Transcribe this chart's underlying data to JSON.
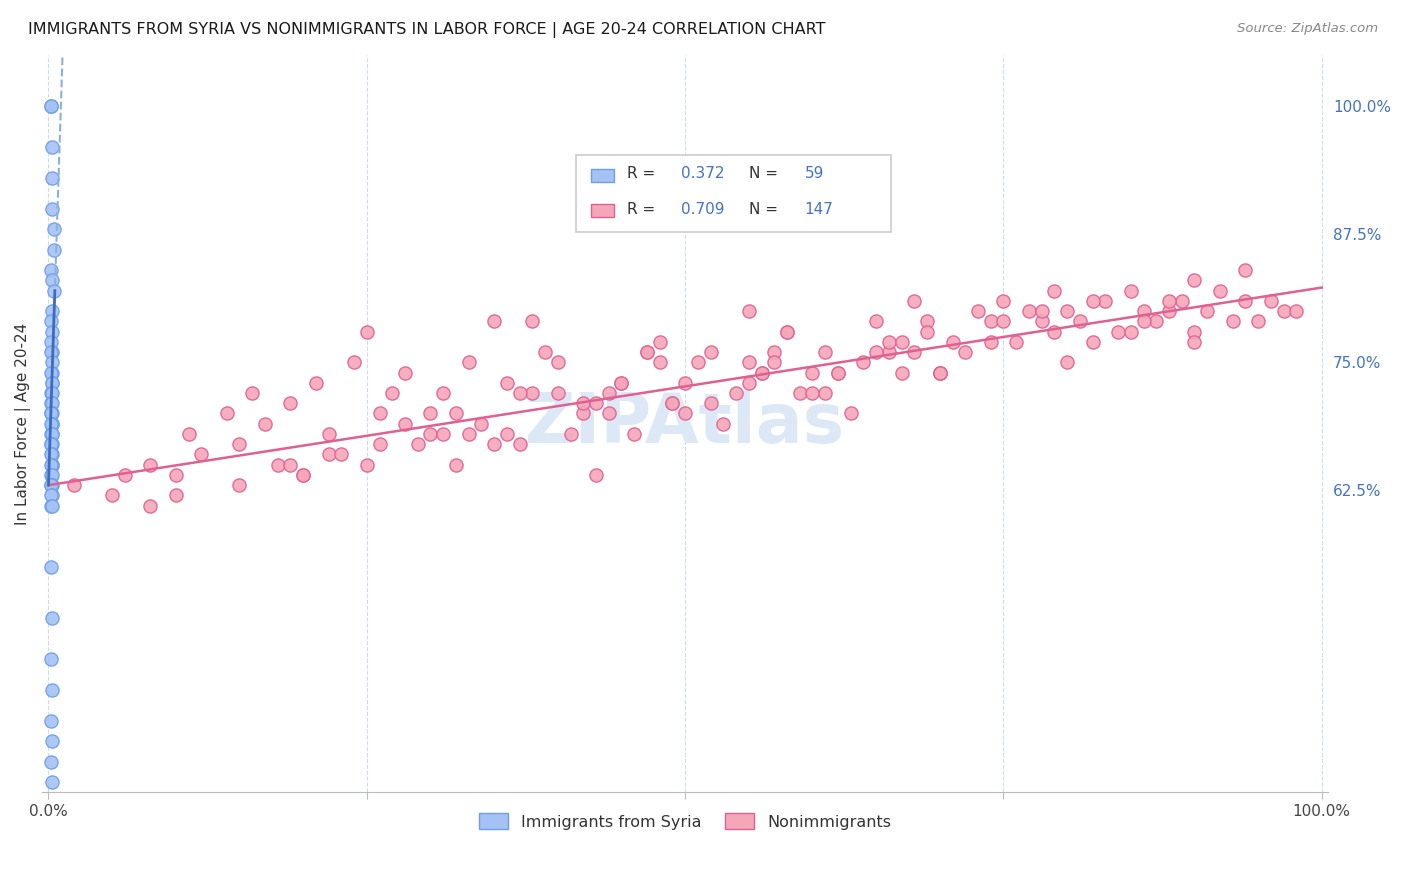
{
  "title": "IMMIGRANTS FROM SYRIA VS NONIMMIGRANTS IN LABOR FORCE | AGE 20-24 CORRELATION CHART",
  "source": "Source: ZipAtlas.com",
  "ylabel": "In Labor Force | Age 20-24",
  "right_yticks": [
    "62.5%",
    "75.0%",
    "87.5%",
    "100.0%"
  ],
  "right_ytick_vals": [
    0.625,
    0.75,
    0.875,
    1.0
  ],
  "blue_color": "#a4c2f4",
  "pink_color": "#f4a7b9",
  "blue_edge_color": "#6d9eeb",
  "pink_edge_color": "#e06090",
  "blue_line_color": "#3d6bbf",
  "pink_line_color": "#e06090",
  "blue_dash_color": "#8ab0e0",
  "watermark_color": "#dce8f5",
  "background": "#ffffff",
  "grid_color": "#c8d8e8",
  "xmin": 0.0,
  "xmax": 1.0,
  "ymin": 0.33,
  "ymax": 1.05,
  "pink_slope": 0.193,
  "pink_intercept": 0.63,
  "blue_slope": 38.0,
  "blue_intercept": 0.63,
  "syria_x": [
    0.002,
    0.002,
    0.003,
    0.003,
    0.003,
    0.004,
    0.004,
    0.002,
    0.003,
    0.004,
    0.003,
    0.002,
    0.003,
    0.002,
    0.003,
    0.002,
    0.003,
    0.003,
    0.002,
    0.003,
    0.003,
    0.002,
    0.003,
    0.002,
    0.003,
    0.002,
    0.003,
    0.002,
    0.003,
    0.003,
    0.002,
    0.003,
    0.002,
    0.003,
    0.002,
    0.003,
    0.002,
    0.003,
    0.002,
    0.003,
    0.003,
    0.002,
    0.002,
    0.003,
    0.002,
    0.003,
    0.002,
    0.003,
    0.002,
    0.002,
    0.003,
    0.002,
    0.003,
    0.002,
    0.003,
    0.002,
    0.003,
    0.002,
    0.003
  ],
  "syria_y": [
    1.0,
    1.0,
    0.96,
    0.93,
    0.9,
    0.88,
    0.86,
    0.84,
    0.83,
    0.82,
    0.8,
    0.79,
    0.78,
    0.77,
    0.76,
    0.76,
    0.75,
    0.74,
    0.74,
    0.73,
    0.73,
    0.72,
    0.72,
    0.71,
    0.71,
    0.7,
    0.7,
    0.7,
    0.69,
    0.69,
    0.69,
    0.68,
    0.68,
    0.68,
    0.67,
    0.67,
    0.67,
    0.66,
    0.66,
    0.65,
    0.65,
    0.65,
    0.64,
    0.64,
    0.63,
    0.63,
    0.63,
    0.62,
    0.62,
    0.61,
    0.61,
    0.55,
    0.5,
    0.46,
    0.43,
    0.4,
    0.38,
    0.36,
    0.34
  ],
  "nonimm_x": [
    0.02,
    0.05,
    0.06,
    0.08,
    0.1,
    0.11,
    0.12,
    0.14,
    0.15,
    0.16,
    0.17,
    0.18,
    0.19,
    0.2,
    0.21,
    0.22,
    0.24,
    0.25,
    0.26,
    0.27,
    0.28,
    0.29,
    0.3,
    0.31,
    0.32,
    0.33,
    0.34,
    0.35,
    0.36,
    0.37,
    0.38,
    0.39,
    0.4,
    0.41,
    0.42,
    0.43,
    0.44,
    0.45,
    0.46,
    0.47,
    0.48,
    0.49,
    0.5,
    0.51,
    0.52,
    0.53,
    0.54,
    0.55,
    0.56,
    0.57,
    0.58,
    0.59,
    0.6,
    0.61,
    0.62,
    0.63,
    0.64,
    0.65,
    0.66,
    0.67,
    0.68,
    0.69,
    0.7,
    0.71,
    0.72,
    0.73,
    0.74,
    0.75,
    0.76,
    0.77,
    0.78,
    0.79,
    0.8,
    0.81,
    0.82,
    0.83,
    0.84,
    0.85,
    0.86,
    0.87,
    0.88,
    0.89,
    0.9,
    0.91,
    0.92,
    0.93,
    0.94,
    0.95,
    0.96,
    0.97,
    0.98,
    0.25,
    0.3,
    0.35,
    0.38,
    0.42,
    0.47,
    0.52,
    0.57,
    0.61,
    0.66,
    0.7,
    0.75,
    0.8,
    0.85,
    0.9,
    0.2,
    0.28,
    0.33,
    0.4,
    0.45,
    0.5,
    0.55,
    0.6,
    0.65,
    0.7,
    0.22,
    0.32,
    0.44,
    0.55,
    0.67,
    0.78,
    0.88,
    0.15,
    0.26,
    0.37,
    0.48,
    0.58,
    0.68,
    0.79,
    0.9,
    0.1,
    0.23,
    0.36,
    0.49,
    0.62,
    0.74,
    0.86,
    0.08,
    0.19,
    0.31,
    0.43,
    0.56,
    0.69,
    0.82,
    0.94
  ],
  "nonimm_y": [
    0.63,
    0.62,
    0.64,
    0.65,
    0.64,
    0.68,
    0.66,
    0.7,
    0.67,
    0.72,
    0.69,
    0.65,
    0.71,
    0.64,
    0.73,
    0.68,
    0.75,
    0.78,
    0.7,
    0.72,
    0.74,
    0.67,
    0.68,
    0.72,
    0.7,
    0.75,
    0.69,
    0.79,
    0.73,
    0.67,
    0.72,
    0.76,
    0.75,
    0.68,
    0.7,
    0.64,
    0.72,
    0.73,
    0.68,
    0.76,
    0.77,
    0.71,
    0.73,
    0.75,
    0.76,
    0.69,
    0.72,
    0.8,
    0.74,
    0.76,
    0.78,
    0.72,
    0.74,
    0.76,
    0.74,
    0.7,
    0.75,
    0.79,
    0.76,
    0.74,
    0.76,
    0.79,
    0.74,
    0.77,
    0.76,
    0.8,
    0.79,
    0.81,
    0.77,
    0.8,
    0.79,
    0.78,
    0.8,
    0.79,
    0.77,
    0.81,
    0.78,
    0.82,
    0.8,
    0.79,
    0.8,
    0.81,
    0.78,
    0.8,
    0.82,
    0.79,
    0.81,
    0.79,
    0.81,
    0.8,
    0.8,
    0.65,
    0.7,
    0.67,
    0.79,
    0.71,
    0.76,
    0.71,
    0.75,
    0.72,
    0.77,
    0.74,
    0.79,
    0.75,
    0.78,
    0.77,
    0.64,
    0.69,
    0.68,
    0.72,
    0.73,
    0.7,
    0.75,
    0.72,
    0.76,
    0.74,
    0.66,
    0.65,
    0.7,
    0.73,
    0.77,
    0.8,
    0.81,
    0.63,
    0.67,
    0.72,
    0.75,
    0.78,
    0.81,
    0.82,
    0.83,
    0.62,
    0.66,
    0.68,
    0.71,
    0.74,
    0.77,
    0.79,
    0.61,
    0.65,
    0.68,
    0.71,
    0.74,
    0.78,
    0.81,
    0.84
  ]
}
